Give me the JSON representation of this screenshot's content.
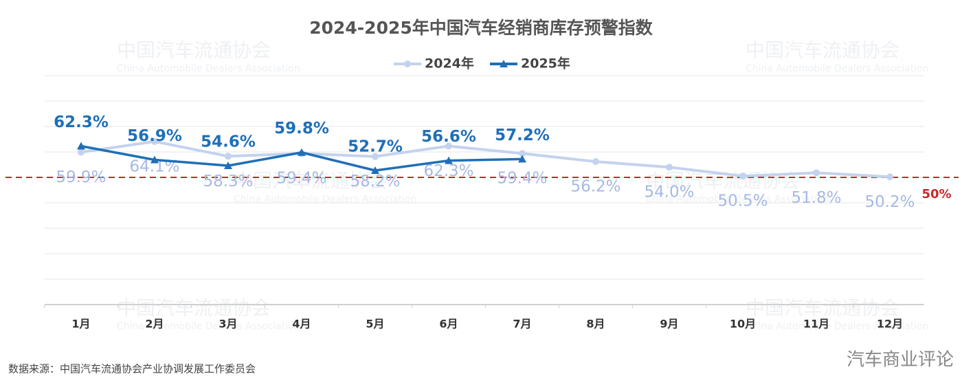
{
  "chart_data": {
    "type": "line",
    "title": "2024-2025年中国汽车经销商库存预警指数",
    "categories": [
      "1月",
      "2月",
      "3月",
      "4月",
      "5月",
      "6月",
      "7月",
      "8月",
      "9月",
      "10月",
      "11月",
      "12月"
    ],
    "series": [
      {
        "name": "2024年",
        "color": "#c3d2ee",
        "label_color": "#a6b9e3",
        "values": [
          59.9,
          64.1,
          58.3,
          59.4,
          58.2,
          62.3,
          59.4,
          56.2,
          54.0,
          50.5,
          51.8,
          50.2
        ],
        "value_labels": [
          "59.9%",
          "64.1%",
          "58.3%",
          "59.4%",
          "58.2%",
          "62.3%",
          "59.4%",
          "56.2%",
          "54.0%",
          "50.5%",
          "51.8%",
          "50.2%"
        ]
      },
      {
        "name": "2025年",
        "color": "#1f6fb8",
        "label_color": "#1f6fb8",
        "values": [
          62.3,
          56.9,
          54.6,
          59.8,
          52.7,
          56.6,
          57.2,
          null,
          null,
          null,
          null,
          null
        ],
        "value_labels": [
          "62.3%",
          "56.9%",
          "54.6%",
          "59.8%",
          "52.7%",
          "56.6%",
          "57.2%",
          null,
          null,
          null,
          null,
          null
        ]
      }
    ],
    "ylim": [
      0,
      90
    ],
    "yticks": [
      0,
      10,
      20,
      30,
      40,
      50,
      60,
      70,
      80,
      90
    ],
    "grid": true,
    "reference_line": {
      "value": 50,
      "label": "50%",
      "color": "#c8282d"
    },
    "source": "数据来源：中国汽车流通协会产业协调发展工作委员会",
    "watermark": {
      "cn": "中国汽车流通协会",
      "en": "China Automobile Dealers Association",
      "corner": "汽车商业评论"
    }
  }
}
